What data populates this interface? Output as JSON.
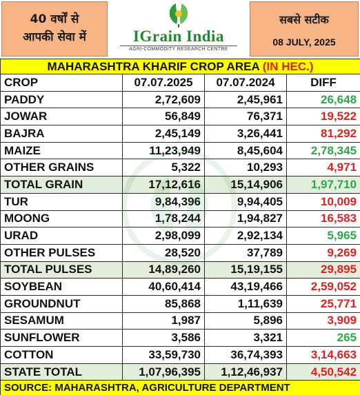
{
  "header": {
    "left_tagline_line1": "40 वर्षों से",
    "left_tagline_line2": "आपकी सेवा में",
    "brand": "IGrain India",
    "brand_tagline": "AGRI-COMMODITY RESEARCH CENTRE",
    "right_tagline": "सबसे सटीक",
    "date": "08 JULY, 2025"
  },
  "title": {
    "main": "MAHARASHTRA KHARIF CROP AREA",
    "unit": "(IN HEC.)"
  },
  "columns": [
    "CROP",
    "07.07.2025",
    "07.07.2024",
    "DIFF"
  ],
  "rows": [
    {
      "crop": "PADDY",
      "y2025": "2,72,609",
      "y2024": "2,45,961",
      "diff": "26,648",
      "change": "up",
      "total": false
    },
    {
      "crop": "JOWAR",
      "y2025": "56,849",
      "y2024": "76,371",
      "diff": "19,522",
      "change": "down",
      "total": false
    },
    {
      "crop": "BAJRA",
      "y2025": "2,45,149",
      "y2024": "3,26,441",
      "diff": "81,292",
      "change": "down",
      "total": false
    },
    {
      "crop": "MAIZE",
      "y2025": "11,23,949",
      "y2024": "8,45,604",
      "diff": "2,78,345",
      "change": "up",
      "total": false
    },
    {
      "crop": "OTHER GRAINS",
      "y2025": "5,322",
      "y2024": "10,293",
      "diff": "4,971",
      "change": "down",
      "total": false
    },
    {
      "crop": "TOTAL GRAIN",
      "y2025": "17,12,616",
      "y2024": "15,14,906",
      "diff": "1,97,710",
      "change": "up",
      "total": true
    },
    {
      "crop": "TUR",
      "y2025": "9,84,396",
      "y2024": "9,94,405",
      "diff": "10,009",
      "change": "down",
      "total": false
    },
    {
      "crop": "MOONG",
      "y2025": "1,78,244",
      "y2024": "1,94,827",
      "diff": "16,583",
      "change": "down",
      "total": false
    },
    {
      "crop": "URAD",
      "y2025": "2,98,099",
      "y2024": "2,92,134",
      "diff": "5,965",
      "change": "up",
      "total": false
    },
    {
      "crop": "OTHER PULSES",
      "y2025": "28,520",
      "y2024": "37,789",
      "diff": "9,269",
      "change": "down",
      "total": false
    },
    {
      "crop": "TOTAL PULSES",
      "y2025": "14,89,260",
      "y2024": "15,19,155",
      "diff": "29,895",
      "change": "down",
      "total": true
    },
    {
      "crop": "SOYBEAN",
      "y2025": "40,60,414",
      "y2024": "43,19,466",
      "diff": "2,59,052",
      "change": "down",
      "total": false
    },
    {
      "crop": "GROUNDNUT",
      "y2025": "85,868",
      "y2024": "1,11,639",
      "diff": "25,771",
      "change": "down",
      "total": false
    },
    {
      "crop": "SESAMUM",
      "y2025": "1,987",
      "y2024": "5,896",
      "diff": "3,909",
      "change": "down",
      "total": false
    },
    {
      "crop": "SUNFLOWER",
      "y2025": "3,586",
      "y2024": "3,321",
      "diff": "265",
      "change": "up",
      "total": false
    },
    {
      "crop": "COTTON",
      "y2025": "33,59,730",
      "y2024": "36,74,393",
      "diff": "3,14,663",
      "change": "down",
      "total": false
    },
    {
      "crop": "STATE TOTAL",
      "y2025": "1,07,96,395",
      "y2024": "1,12,46,937",
      "diff": "4,50,542",
      "change": "down",
      "total": true
    }
  ],
  "source": "SOURCE: MAHARASHTRA, AGRICULTURE DEPARTMENT",
  "colors": {
    "header_box": "#f7b585",
    "title_bar": "#ffff00",
    "total_row": "#e2eedb",
    "increase": "#2aa84a",
    "decrease": "#e21f1f",
    "brand": "#1f8a2d"
  }
}
